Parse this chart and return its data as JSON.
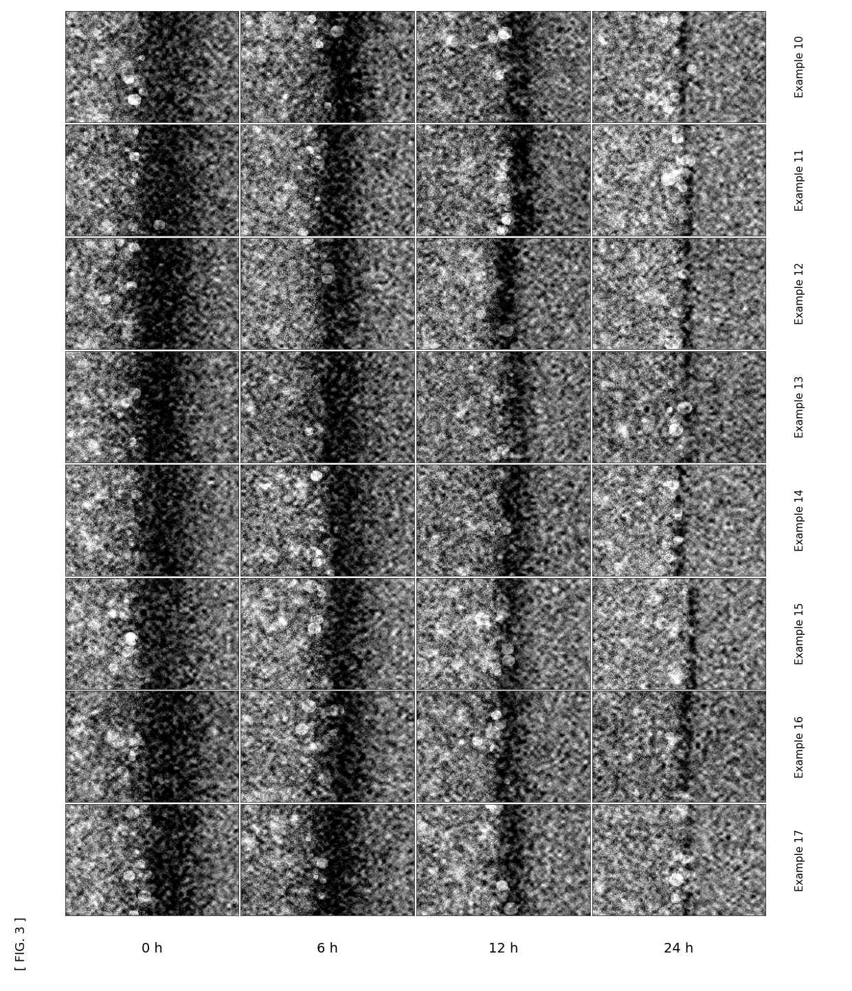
{
  "figure_label": "[ FIG. 3 ]",
  "row_labels": [
    "Example 10",
    "Example 11",
    "Example 12",
    "Example 13",
    "Example 14",
    "Example 15",
    "Example 16",
    "Example 17"
  ],
  "col_labels": [
    "0 h",
    "6 h",
    "12 h",
    "24 h"
  ],
  "n_rows": 8,
  "n_cols": 4,
  "bg_color": "#ffffff",
  "fig_width": 12.4,
  "fig_height": 14.42,
  "row_label_fontsize": 11,
  "col_label_fontsize": 14,
  "fig_label_fontsize": 13
}
